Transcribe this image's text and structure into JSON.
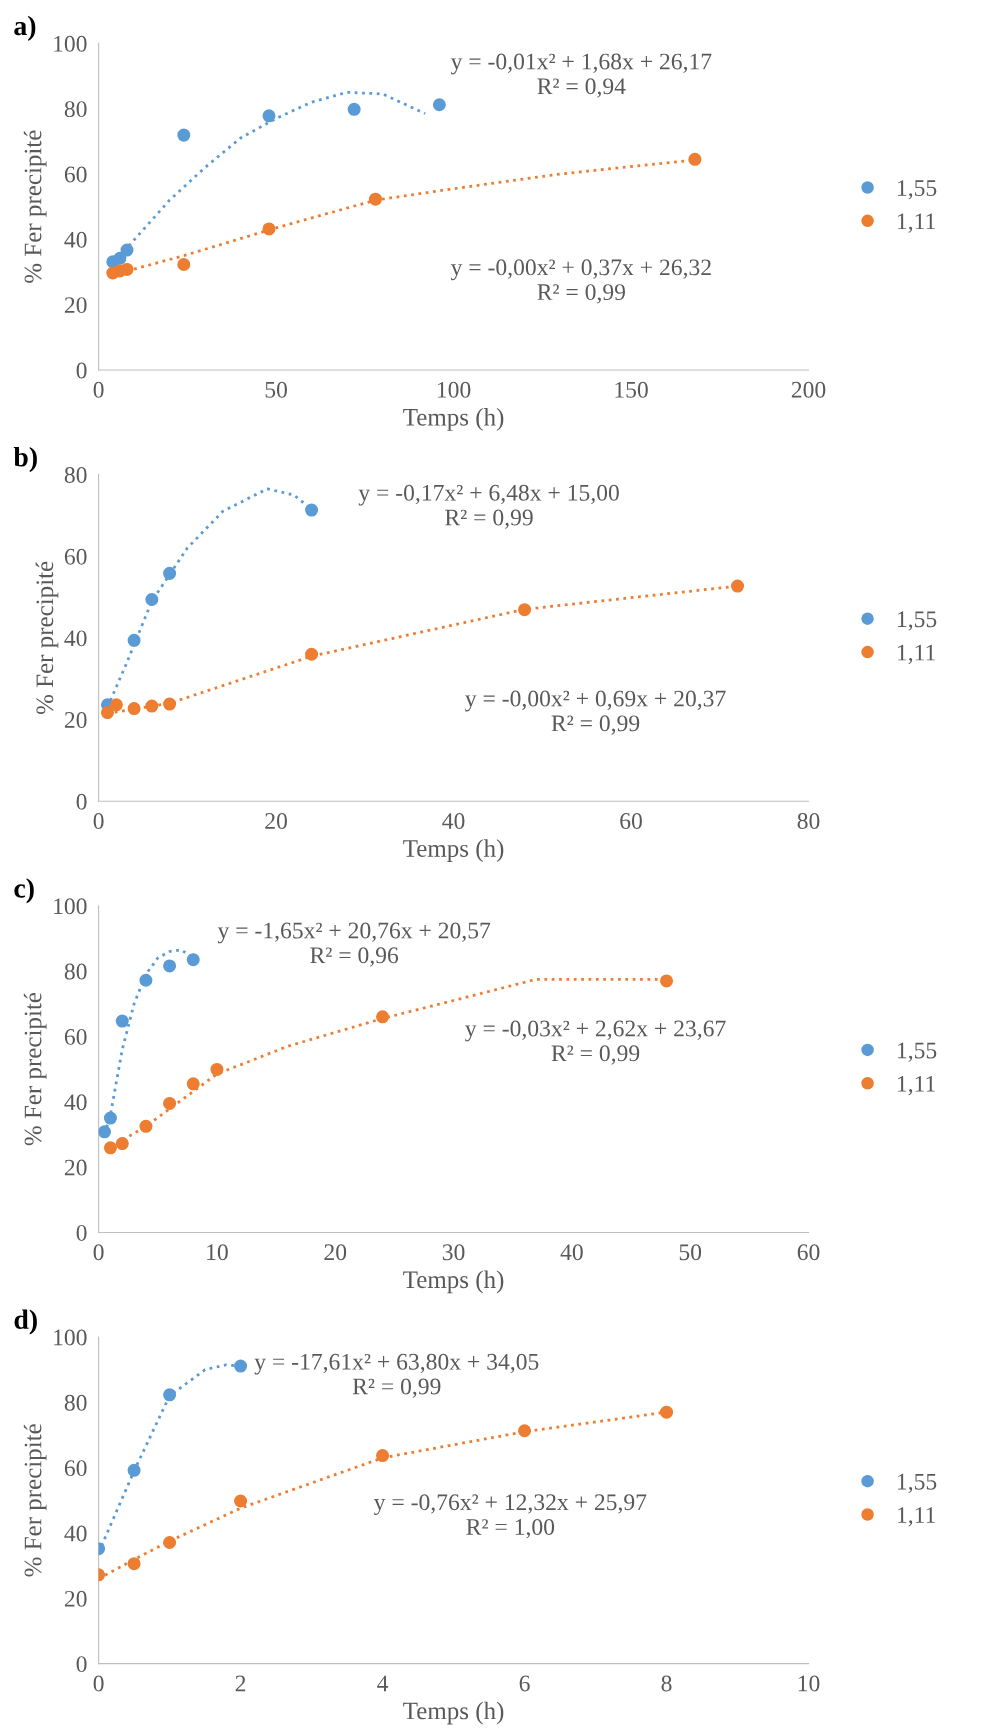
{
  "chart_data": [
    {
      "type": "scatter",
      "title": "a)",
      "xlabel": "Temps (h)",
      "ylabel": "% Fer precipité",
      "xlim": [
        0,
        200
      ],
      "xticks": [
        0,
        50,
        100,
        150,
        200
      ],
      "ylim": [
        0,
        100
      ],
      "yticks": [
        0,
        20,
        40,
        60,
        80,
        100
      ],
      "grid": false,
      "legend": "right",
      "marker": "circle",
      "annotations": [
        "y = -0,01x² + 1,68x + 26,17\nR² = 0,94",
        "y = -0,00x² + 0,37x + 26,32\nR² = 0,99"
      ],
      "series": [
        {
          "name": "1,55",
          "color": "#5b9bd5",
          "x": [
            4,
            6,
            8,
            24,
            48,
            72,
            96
          ],
          "values": [
            33.1,
            34.2,
            36.7,
            71.9,
            77.8,
            79.8,
            81.2
          ]
        },
        {
          "name": "1,11",
          "color": "#ed7d31",
          "x": [
            4,
            6,
            8,
            24,
            48,
            78,
            168
          ],
          "values": [
            29.7,
            30.3,
            30.8,
            32.3,
            43.2,
            52.3,
            64.5
          ]
        },
        {
          "type": "line",
          "color": "#5b9bd5",
          "line_style": "dotted",
          "marker": "none",
          "x": [
            8.5,
            20,
            30,
            40,
            50,
            60,
            70,
            80,
            92
          ],
          "values": [
            38,
            52,
            62,
            71,
            77,
            82,
            85,
            84.5,
            78.5
          ]
        },
        {
          "type": "line",
          "color": "#ed7d31",
          "line_style": "dotted",
          "marker": "none",
          "x": [
            8,
            24,
            50,
            78,
            100,
            130,
            168
          ],
          "values": [
            30.3,
            35,
            43.5,
            52,
            55.5,
            60,
            64.3
          ]
        }
      ]
    },
    {
      "type": "scatter",
      "title": "b)",
      "xlabel": "Temps (h)",
      "ylabel": "% Fer precipité",
      "xlim": [
        0,
        80
      ],
      "xticks": [
        0,
        20,
        40,
        60,
        80
      ],
      "ylim": [
        0,
        80
      ],
      "yticks": [
        0,
        20,
        40,
        60,
        80
      ],
      "grid": false,
      "legend": "right",
      "marker": "circle",
      "annotations": [
        "y = -0,17x² + 6,48x + 15,00\nR² = 0,99",
        "y = -0,00x² + 0,69x + 20,37\nR² = 0,99"
      ],
      "series": [
        {
          "name": "1,55",
          "color": "#5b9bd5",
          "x": [
            1,
            4,
            6,
            8,
            24
          ],
          "values": [
            23.6,
            39.4,
            49.4,
            55.8,
            71.3
          ]
        },
        {
          "name": "1,11",
          "color": "#ed7d31",
          "x": [
            1,
            2,
            4,
            6,
            8,
            24,
            48,
            72
          ],
          "values": [
            21.7,
            23.6,
            22.7,
            23.3,
            23.8,
            36,
            46.9,
            52.7
          ]
        },
        {
          "type": "line",
          "color": "#5b9bd5",
          "line_style": "dotted",
          "marker": "none",
          "x": [
            1,
            3,
            6,
            10,
            14,
            19,
            22,
            24
          ],
          "values": [
            23,
            33,
            49,
            62,
            71,
            76.5,
            75,
            71.5
          ]
        },
        {
          "type": "line",
          "color": "#ed7d31",
          "line_style": "dotted",
          "marker": "none",
          "x": [
            1,
            8,
            24,
            48,
            72
          ],
          "values": [
            21.5,
            24,
            35.5,
            47,
            52.7
          ]
        }
      ]
    },
    {
      "type": "scatter",
      "title": "c)",
      "xlabel": "Temps (h)",
      "ylabel": "% Fer precipité",
      "xlim": [
        0,
        60
      ],
      "xticks": [
        0,
        10,
        20,
        30,
        40,
        50,
        60
      ],
      "ylim": [
        0,
        100
      ],
      "yticks": [
        0,
        20,
        40,
        60,
        80,
        100
      ],
      "grid": false,
      "legend": "right",
      "marker": "circle",
      "annotations": [
        "y = -1,65x² + 20,76x + 20,57\nR² = 0,96",
        "y = -0,03x² + 2,62x + 23,67\nR² = 0,99"
      ],
      "series": [
        {
          "name": "1,55",
          "color": "#5b9bd5",
          "x": [
            0.5,
            1,
            2,
            4,
            6,
            8
          ],
          "values": [
            30.8,
            35,
            64.7,
            77.2,
            81.6,
            83.5
          ]
        },
        {
          "name": "1,11",
          "color": "#ed7d31",
          "x": [
            1,
            2,
            4,
            6,
            8,
            10,
            24,
            48
          ],
          "values": [
            25.9,
            27.2,
            32.5,
            39.5,
            45.5,
            49.9,
            66,
            77
          ]
        },
        {
          "type": "line",
          "color": "#5b9bd5",
          "line_style": "dotted",
          "marker": "none",
          "x": [
            0.5,
            1,
            2,
            3,
            4,
            5,
            6,
            7,
            8
          ],
          "values": [
            30,
            36,
            56,
            70,
            79,
            84,
            86,
            86.5,
            84
          ]
        },
        {
          "type": "line",
          "color": "#ed7d31",
          "line_style": "dotted",
          "marker": "none",
          "x": [
            1,
            4,
            10,
            16,
            24,
            30,
            37,
            48
          ],
          "values": [
            26,
            32.5,
            48.5,
            57,
            65.5,
            71,
            77.5,
            77.5
          ]
        }
      ]
    },
    {
      "type": "scatter",
      "title": "d)",
      "xlabel": "Temps (h)",
      "ylabel": "% Fer precipité",
      "xlim": [
        0,
        10
      ],
      "xticks": [
        0,
        2,
        4,
        6,
        8,
        10
      ],
      "ylim": [
        0,
        100
      ],
      "yticks": [
        0,
        20,
        40,
        60,
        80,
        100
      ],
      "grid": false,
      "legend": "right",
      "marker": "circle",
      "annotations": [
        "y = -17,61x² + 63,80x + 34,05\nR² = 0,99",
        "y = -0,76x² + 12,32x + 25,97\nR² = 1,00"
      ],
      "series": [
        {
          "name": "1,55",
          "color": "#5b9bd5",
          "x": [
            0,
            0.5,
            1,
            2
          ],
          "values": [
            35.2,
            59.2,
            82.3,
            91.1
          ]
        },
        {
          "name": "1,11",
          "color": "#ed7d31",
          "x": [
            0,
            0.5,
            1,
            2,
            4,
            6,
            8
          ],
          "values": [
            27.2,
            30.6,
            37.1,
            49.8,
            63.7,
            71.3,
            77
          ]
        },
        {
          "type": "line",
          "color": "#5b9bd5",
          "line_style": "dotted",
          "marker": "none",
          "x": [
            0,
            0.5,
            1,
            1.5,
            1.8,
            2
          ],
          "values": [
            34,
            59,
            82,
            90,
            91.5,
            91
          ]
        },
        {
          "type": "line",
          "color": "#ed7d31",
          "line_style": "dotted",
          "marker": "none",
          "x": [
            0,
            0.5,
            1,
            2,
            4,
            6,
            8
          ],
          "values": [
            26,
            31.9,
            37.5,
            47.6,
            63,
            71,
            77
          ]
        }
      ]
    }
  ]
}
